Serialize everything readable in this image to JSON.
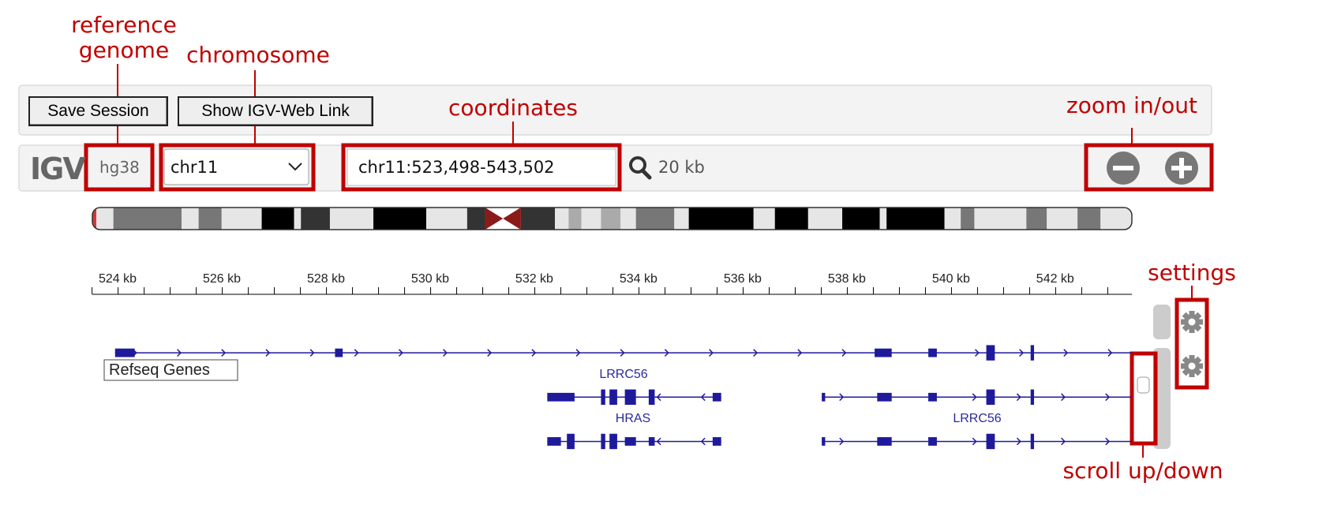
{
  "annotations": {
    "reference_genome": "reference genome",
    "chromosome": "chromosome",
    "coordinates": "coordinates",
    "zoom": "zoom in/out",
    "settings": "settings",
    "scroll": "scroll up/down"
  },
  "toolbar": {
    "buttons": [
      "Save Session",
      "Show IGV-Web Link"
    ]
  },
  "navbar": {
    "logo": "IGV",
    "genome": "hg38",
    "chromosome": "chr11",
    "locus": "chr11:523,498-543,502",
    "window_size": "20 kb"
  },
  "ruler": {
    "labels": [
      "524 kb",
      "526 kb",
      "528 kb",
      "530 kb",
      "532 kb",
      "534 kb",
      "536 kb",
      "538 kb",
      "540 kb",
      "542 kb"
    ]
  },
  "track": {
    "name": "Refseq Genes",
    "gene_labels": [
      "LRRC56",
      "HRAS",
      "LRRC56"
    ]
  }
}
